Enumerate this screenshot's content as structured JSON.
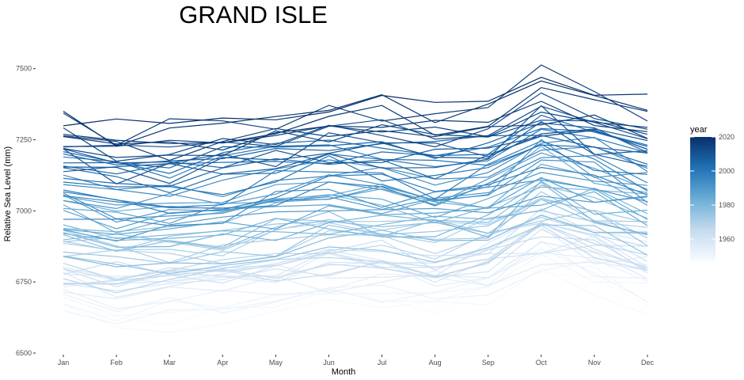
{
  "chart_data": {
    "type": "line",
    "title": "GRAND ISLE",
    "xlabel": "Month",
    "ylabel": "Relative Sea Level (mm)",
    "categories": [
      "Jan",
      "Feb",
      "Mar",
      "Apr",
      "May",
      "Jun",
      "Jul",
      "Aug",
      "Sep",
      "Oct",
      "Nov",
      "Dec"
    ],
    "ylim": [
      6500,
      7630
    ],
    "y_ticks": [
      6500,
      6750,
      7000,
      7250,
      7500
    ],
    "grid": false,
    "legend": {
      "title": "year",
      "type": "colorbar",
      "placement": "right",
      "range": [
        1947,
        2020
      ],
      "ticks": [
        1960,
        1980,
        2000,
        2020
      ],
      "colors": [
        "#f7fbff",
        "#c6dbef",
        "#6baed6",
        "#2171b5",
        "#08306b"
      ]
    },
    "series_coloring": "year",
    "series_trend": {
      "base_level_1947": 6620,
      "base_level_2020": 7290,
      "monthly_offsets": [
        20,
        -20,
        -10,
        5,
        35,
        60,
        60,
        35,
        60,
        150,
        110,
        55
      ]
    }
  }
}
